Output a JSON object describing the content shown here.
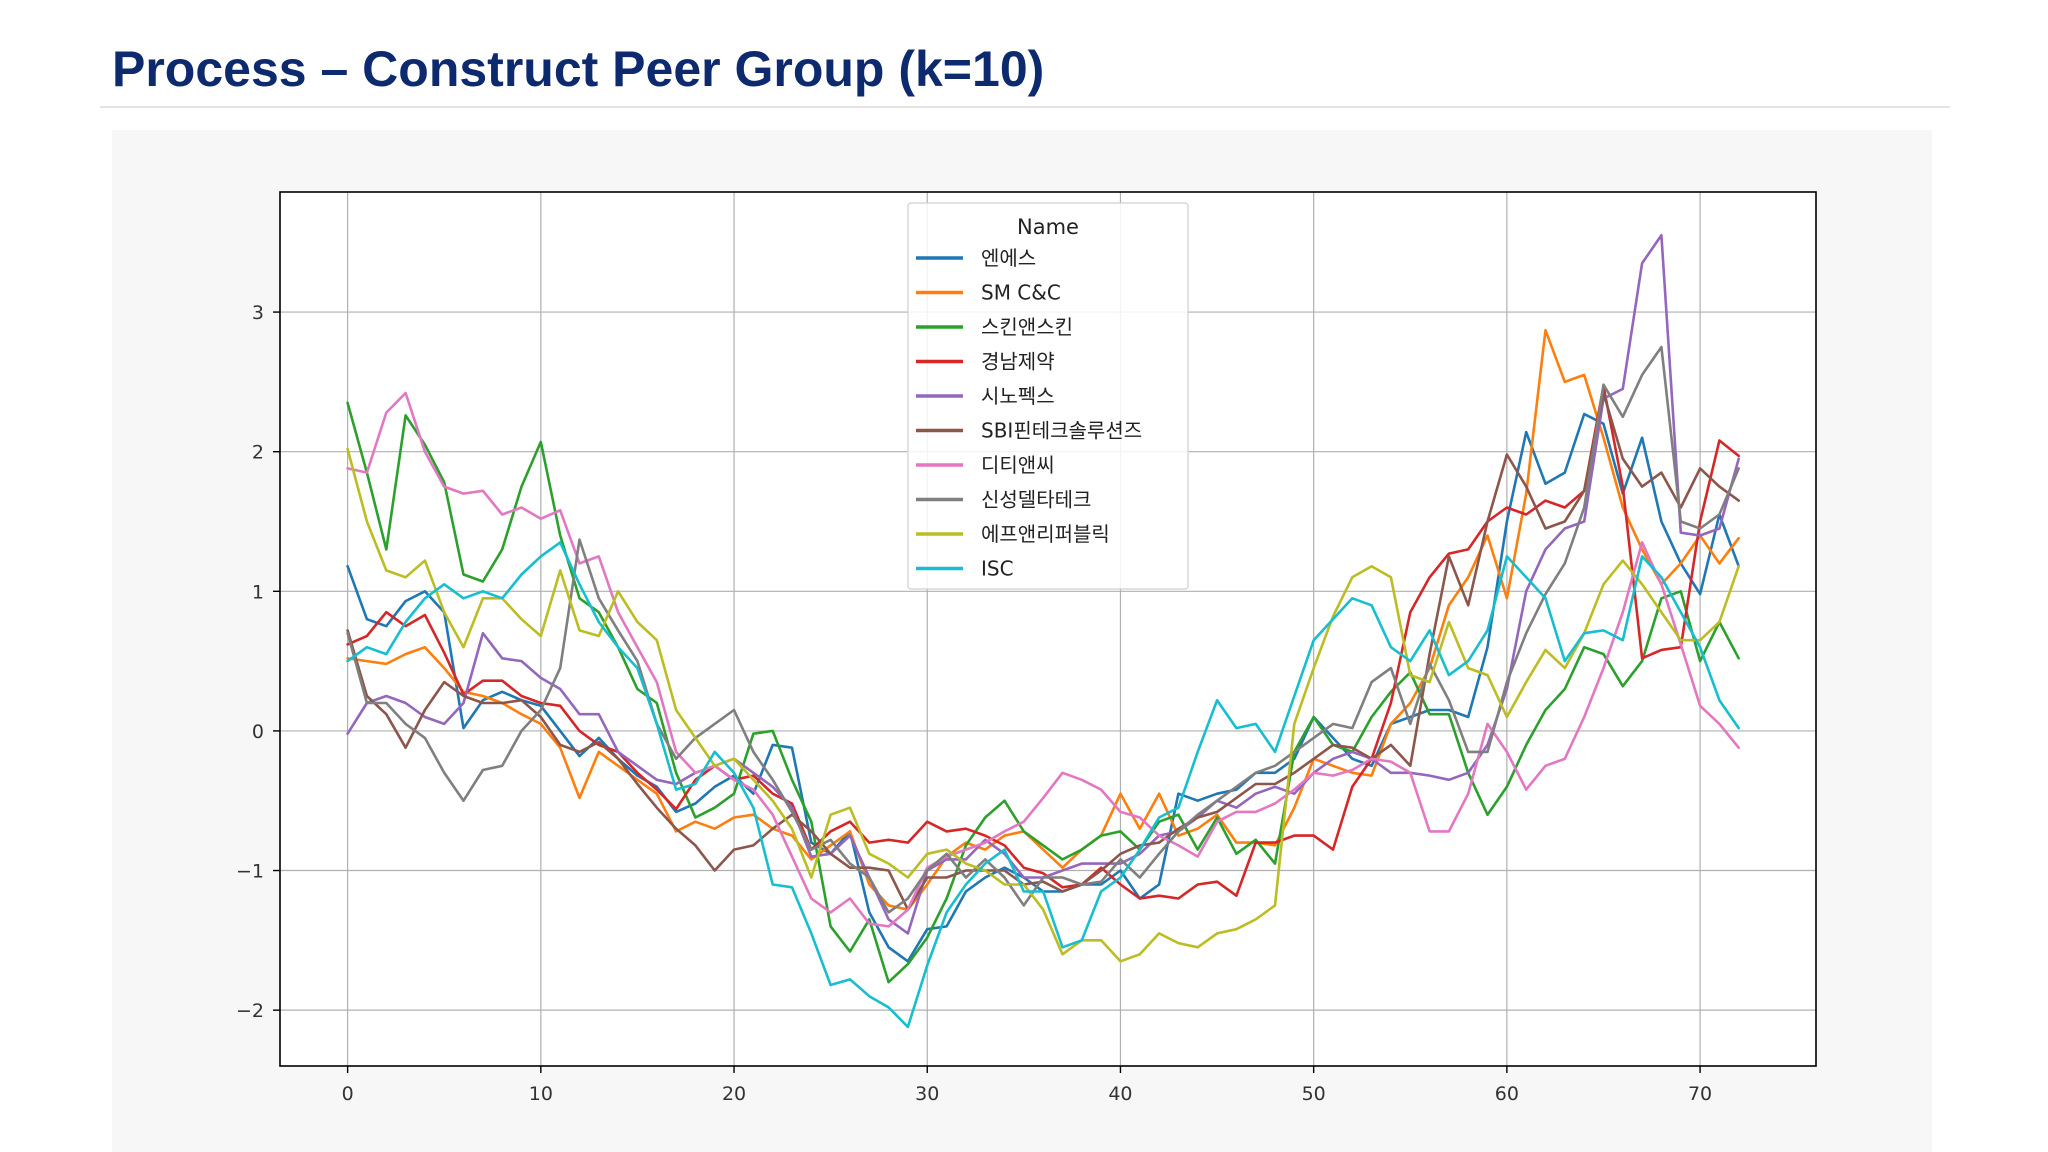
{
  "slide": {
    "title": "Process – Construct Peer Group (k=10)"
  },
  "chart_data": {
    "type": "line",
    "title": "",
    "xlabel": "",
    "ylabel": "",
    "xlim": [
      -3.5,
      76
    ],
    "ylim": [
      -2.4,
      3.86
    ],
    "xticks": [
      0,
      10,
      20,
      30,
      40,
      50,
      60,
      70
    ],
    "xtick_labels": [
      "0",
      "10",
      "20",
      "30",
      "40",
      "50",
      "60",
      "70"
    ],
    "yticks": [
      -2,
      -1,
      0,
      1,
      2,
      3
    ],
    "ytick_labels": [
      "−2",
      "−1",
      "0",
      "1",
      "2",
      "3"
    ],
    "grid": true,
    "legend": {
      "title": "Name",
      "position": "top-center"
    },
    "x": [
      0,
      1,
      2,
      3,
      4,
      5,
      6,
      7,
      8,
      9,
      10,
      11,
      12,
      13,
      14,
      15,
      16,
      17,
      18,
      19,
      20,
      21,
      22,
      23,
      24,
      25,
      26,
      27,
      28,
      29,
      30,
      31,
      32,
      33,
      34,
      35,
      36,
      37,
      38,
      39,
      40,
      41,
      42,
      43,
      44,
      45,
      46,
      47,
      48,
      49,
      50,
      51,
      52,
      53,
      54,
      55,
      56,
      57,
      58,
      59,
      60,
      61,
      62,
      63,
      64,
      65,
      66,
      67,
      68,
      69,
      70,
      71,
      72
    ],
    "series": [
      {
        "name": "엔에스",
        "color": "#1f77b4",
        "values": [
          1.18,
          0.8,
          0.75,
          0.93,
          1.0,
          0.85,
          0.02,
          0.22,
          0.28,
          0.22,
          0.18,
          0.0,
          -0.18,
          -0.05,
          -0.2,
          -0.32,
          -0.4,
          -0.58,
          -0.52,
          -0.4,
          -0.32,
          -0.45,
          -0.1,
          -0.12,
          -0.8,
          -0.88,
          -0.72,
          -1.3,
          -1.55,
          -1.65,
          -1.42,
          -1.4,
          -1.15,
          -1.05,
          -0.98,
          -1.05,
          -1.15,
          -1.15,
          -1.1,
          -1.1,
          -1.0,
          -1.2,
          -1.1,
          -0.45,
          -0.5,
          -0.45,
          -0.42,
          -0.3,
          -0.3,
          -0.2,
          0.1,
          -0.05,
          -0.2,
          -0.25,
          0.05,
          0.1,
          0.15,
          0.15,
          0.1,
          0.6,
          1.5,
          2.14,
          1.77,
          1.85,
          2.27,
          2.2,
          1.7,
          2.1,
          1.5,
          1.2,
          0.98,
          1.55,
          1.18
        ]
      },
      {
        "name": "SM C&C",
        "color": "#ff7f0e",
        "values": [
          0.52,
          0.5,
          0.48,
          0.55,
          0.6,
          0.45,
          0.28,
          0.25,
          0.2,
          0.12,
          0.05,
          -0.12,
          -0.48,
          -0.15,
          -0.25,
          -0.35,
          -0.45,
          -0.72,
          -0.65,
          -0.7,
          -0.62,
          -0.6,
          -0.7,
          -0.75,
          -0.92,
          -0.82,
          -0.72,
          -1.1,
          -1.25,
          -1.28,
          -1.1,
          -0.9,
          -0.8,
          -0.85,
          -0.75,
          -0.72,
          -0.85,
          -0.98,
          -0.85,
          -0.75,
          -0.45,
          -0.7,
          -0.45,
          -0.75,
          -0.7,
          -0.6,
          -0.8,
          -0.8,
          -0.82,
          -0.55,
          -0.2,
          -0.25,
          -0.3,
          -0.32,
          0.05,
          0.2,
          0.45,
          0.9,
          1.1,
          1.4,
          0.95,
          1.7,
          2.87,
          2.5,
          2.55,
          2.1,
          1.6,
          1.3,
          1.05,
          1.2,
          1.4,
          1.2,
          1.38
        ]
      },
      {
        "name": "스킨앤스킨",
        "color": "#2ca02c",
        "values": [
          2.35,
          1.85,
          1.3,
          2.26,
          2.05,
          1.78,
          1.12,
          1.07,
          1.3,
          1.75,
          2.07,
          1.4,
          0.95,
          0.85,
          0.6,
          0.3,
          0.2,
          -0.3,
          -0.62,
          -0.55,
          -0.45,
          -0.02,
          0.0,
          -0.35,
          -0.65,
          -1.4,
          -1.58,
          -1.35,
          -1.8,
          -1.67,
          -1.48,
          -1.2,
          -0.82,
          -0.62,
          -0.5,
          -0.72,
          -0.82,
          -0.92,
          -0.85,
          -0.75,
          -0.72,
          -0.85,
          -0.65,
          -0.6,
          -0.85,
          -0.62,
          -0.88,
          -0.78,
          -0.95,
          -0.15,
          0.1,
          -0.1,
          -0.15,
          0.1,
          0.28,
          0.42,
          0.12,
          0.12,
          -0.3,
          -0.6,
          -0.4,
          -0.1,
          0.15,
          0.3,
          0.6,
          0.55,
          0.32,
          0.5,
          0.95,
          1.0,
          0.5,
          0.78,
          0.52
        ]
      },
      {
        "name": "경남제약",
        "color": "#d62728",
        "values": [
          0.62,
          0.68,
          0.85,
          0.75,
          0.83,
          0.56,
          0.26,
          0.36,
          0.36,
          0.25,
          0.2,
          0.18,
          0.0,
          -0.1,
          -0.15,
          -0.3,
          -0.42,
          -0.56,
          -0.35,
          -0.25,
          -0.35,
          -0.32,
          -0.45,
          -0.52,
          -0.85,
          -0.72,
          -0.65,
          -0.8,
          -0.78,
          -0.8,
          -0.65,
          -0.72,
          -0.7,
          -0.75,
          -0.82,
          -0.98,
          -1.02,
          -1.12,
          -1.1,
          -0.98,
          -1.1,
          -1.2,
          -1.18,
          -1.2,
          -1.1,
          -1.08,
          -1.18,
          -0.8,
          -0.8,
          -0.75,
          -0.75,
          -0.85,
          -0.4,
          -0.2,
          0.2,
          0.85,
          1.1,
          1.27,
          1.3,
          1.5,
          1.6,
          1.55,
          1.65,
          1.6,
          1.72,
          2.47,
          1.75,
          0.52,
          0.58,
          0.6,
          1.5,
          2.08,
          1.97
        ]
      },
      {
        "name": "시노펙스",
        "color": "#9467bd",
        "values": [
          -0.02,
          0.2,
          0.25,
          0.2,
          0.1,
          0.05,
          0.2,
          0.7,
          0.52,
          0.5,
          0.38,
          0.3,
          0.12,
          0.12,
          -0.15,
          -0.25,
          -0.35,
          -0.38,
          -0.3,
          -0.25,
          -0.2,
          -0.3,
          -0.4,
          -0.55,
          -0.9,
          -0.88,
          -0.75,
          -1.05,
          -1.35,
          -1.45,
          -1.0,
          -0.92,
          -0.92,
          -0.78,
          -0.88,
          -1.05,
          -1.05,
          -1.0,
          -0.95,
          -0.95,
          -0.95,
          -0.88,
          -0.75,
          -0.72,
          -0.62,
          -0.5,
          -0.55,
          -0.45,
          -0.4,
          -0.45,
          -0.3,
          -0.2,
          -0.15,
          -0.2,
          -0.3,
          -0.3,
          -0.32,
          -0.35,
          -0.3,
          -0.1,
          0.3,
          1.0,
          1.3,
          1.45,
          1.5,
          2.38,
          2.45,
          3.35,
          3.55,
          1.42,
          1.4,
          1.45,
          1.95
        ]
      },
      {
        "name": "SBI핀테크솔루션즈",
        "color": "#8c564b",
        "values": [
          0.72,
          0.25,
          0.12,
          -0.12,
          0.15,
          0.35,
          0.25,
          0.2,
          0.2,
          0.22,
          0.1,
          -0.1,
          -0.15,
          -0.08,
          -0.2,
          -0.38,
          -0.55,
          -0.7,
          -0.82,
          -1.0,
          -0.85,
          -0.82,
          -0.7,
          -0.6,
          -0.72,
          -0.88,
          -0.98,
          -0.98,
          -1.0,
          -1.28,
          -1.05,
          -1.05,
          -1.0,
          -1.0,
          -1.0,
          -1.1,
          -1.08,
          -1.15,
          -1.1,
          -1.0,
          -0.88,
          -0.82,
          -0.8,
          -0.7,
          -0.62,
          -0.58,
          -0.48,
          -0.38,
          -0.38,
          -0.3,
          -0.2,
          -0.1,
          -0.12,
          -0.2,
          -0.1,
          -0.25,
          0.55,
          1.25,
          0.9,
          1.5,
          1.98,
          1.75,
          1.45,
          1.5,
          1.72,
          2.42,
          1.95,
          1.75,
          1.85,
          1.6,
          1.88,
          1.75,
          1.65
        ]
      },
      {
        "name": "디티앤씨",
        "color": "#e377c2",
        "values": [
          1.88,
          1.85,
          2.28,
          2.42,
          2.0,
          1.75,
          1.7,
          1.72,
          1.55,
          1.6,
          1.52,
          1.58,
          1.2,
          1.25,
          0.85,
          0.6,
          0.35,
          -0.15,
          -0.3,
          -0.25,
          -0.35,
          -0.42,
          -0.6,
          -0.9,
          -1.2,
          -1.3,
          -1.2,
          -1.38,
          -1.4,
          -1.28,
          -0.98,
          -0.9,
          -0.85,
          -0.8,
          -0.72,
          -0.65,
          -0.48,
          -0.3,
          -0.35,
          -0.42,
          -0.58,
          -0.62,
          -0.75,
          -0.82,
          -0.9,
          -0.65,
          -0.58,
          -0.58,
          -0.52,
          -0.42,
          -0.3,
          -0.32,
          -0.28,
          -0.2,
          -0.22,
          -0.3,
          -0.72,
          -0.72,
          -0.45,
          0.05,
          -0.15,
          -0.42,
          -0.25,
          -0.2,
          0.1,
          0.45,
          0.85,
          1.35,
          1.05,
          0.62,
          0.18,
          0.05,
          -0.12
        ]
      },
      {
        "name": "신성델타테크",
        "color": "#7f7f7f",
        "values": [
          0.7,
          0.2,
          0.2,
          0.05,
          -0.05,
          -0.3,
          -0.5,
          -0.28,
          -0.25,
          0.0,
          0.15,
          0.45,
          1.37,
          0.95,
          0.72,
          0.5,
          0.05,
          -0.2,
          -0.05,
          0.05,
          0.15,
          -0.15,
          -0.35,
          -0.58,
          -0.85,
          -0.78,
          -0.95,
          -1.05,
          -1.3,
          -1.2,
          -1.0,
          -0.88,
          -1.05,
          -0.92,
          -1.05,
          -1.25,
          -1.05,
          -1.05,
          -1.1,
          -1.08,
          -0.92,
          -1.05,
          -0.88,
          -0.72,
          -0.6,
          -0.5,
          -0.4,
          -0.3,
          -0.25,
          -0.15,
          -0.05,
          0.05,
          0.02,
          0.35,
          0.45,
          0.05,
          0.48,
          0.22,
          -0.15,
          -0.15,
          0.35,
          0.7,
          0.98,
          1.2,
          1.6,
          2.48,
          2.25,
          2.55,
          2.75,
          1.5,
          1.45,
          1.55,
          1.88
        ]
      },
      {
        "name": "에프앤리퍼블릭",
        "color": "#bcbd22",
        "values": [
          2.02,
          1.5,
          1.15,
          1.1,
          1.22,
          0.85,
          0.6,
          0.95,
          0.95,
          0.8,
          0.68,
          1.15,
          0.72,
          0.68,
          1.0,
          0.78,
          0.65,
          0.15,
          -0.05,
          -0.25,
          -0.2,
          -0.35,
          -0.5,
          -0.7,
          -1.05,
          -0.6,
          -0.55,
          -0.88,
          -0.95,
          -1.05,
          -0.88,
          -0.85,
          -0.95,
          -1.0,
          -1.1,
          -1.1,
          -1.28,
          -1.6,
          -1.5,
          -1.5,
          -1.65,
          -1.6,
          -1.45,
          -1.52,
          -1.55,
          -1.45,
          -1.42,
          -1.35,
          -1.25,
          0.05,
          0.45,
          0.82,
          1.1,
          1.18,
          1.1,
          0.4,
          0.35,
          0.78,
          0.45,
          0.4,
          0.1,
          0.35,
          0.58,
          0.45,
          0.7,
          1.05,
          1.22,
          1.05,
          0.85,
          0.65,
          0.65,
          0.78,
          1.18
        ]
      },
      {
        "name": "ISC",
        "color": "#17becf",
        "values": [
          0.5,
          0.6,
          0.55,
          0.78,
          0.95,
          1.05,
          0.95,
          1.0,
          0.95,
          1.12,
          1.25,
          1.35,
          1.05,
          0.78,
          0.6,
          0.45,
          0.05,
          -0.42,
          -0.38,
          -0.15,
          -0.3,
          -0.55,
          -1.1,
          -1.12,
          -1.45,
          -1.82,
          -1.78,
          -1.9,
          -1.98,
          -2.12,
          -1.68,
          -1.3,
          -1.1,
          -0.95,
          -0.85,
          -1.15,
          -1.15,
          -1.55,
          -1.5,
          -1.15,
          -1.05,
          -0.85,
          -0.62,
          -0.55,
          -0.15,
          0.22,
          0.02,
          0.05,
          -0.15,
          0.25,
          0.65,
          0.8,
          0.95,
          0.9,
          0.6,
          0.5,
          0.72,
          0.4,
          0.5,
          0.72,
          1.25,
          1.1,
          0.95,
          0.5,
          0.7,
          0.72,
          0.65,
          1.25,
          1.1,
          0.85,
          0.6,
          0.22,
          0.02
        ]
      }
    ]
  }
}
